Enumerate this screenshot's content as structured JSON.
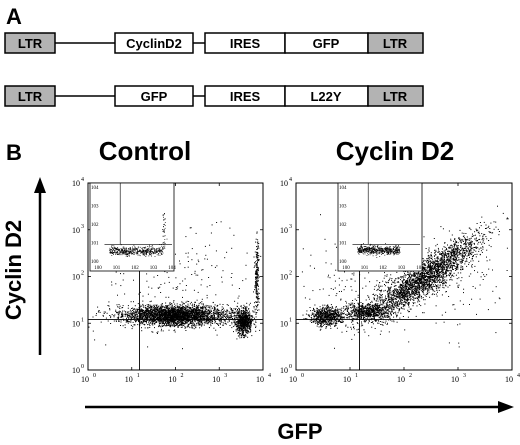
{
  "panel_a": {
    "letter": "A",
    "constructs": [
      {
        "name": "cyclind2-construct",
        "segments": [
          "LTR",
          "CyclinD2",
          "IRES",
          "GFP",
          "LTR"
        ]
      },
      {
        "name": "l22y-construct",
        "segments": [
          "LTR",
          "GFP",
          "IRES",
          "L22Y",
          "LTR"
        ]
      }
    ]
  },
  "panel_b": {
    "letter": "B",
    "y_axis_title": "Cyclin D2",
    "x_axis_title": "GFP"
  },
  "chart_data": [
    {
      "type": "scatter",
      "title": "Control",
      "xlabel": "GFP",
      "ylabel": "Cyclin D2",
      "xscale": "log",
      "yscale": "log",
      "xlim": [
        1,
        10000
      ],
      "ylim": [
        1,
        10000
      ],
      "xticks": [
        "10",
        "10",
        "10",
        "10",
        "10"
      ],
      "xtick_exponents": [
        "0",
        "1",
        "2",
        "3",
        "4"
      ],
      "yticks": [
        "10",
        "10",
        "10",
        "10",
        "10"
      ],
      "ytick_exponents": [
        "0",
        "1",
        "2",
        "3",
        "4"
      ],
      "quadrant_gate": {
        "x": 15,
        "y": 12
      },
      "populations": [
        {
          "x_log_center": 2.0,
          "y_log_center": 1.18,
          "x_log_spread": 1.2,
          "y_log_spread": 0.22,
          "weight": 0.72
        },
        {
          "x_log_center": 3.55,
          "y_log_center": 1.05,
          "x_log_spread": 0.2,
          "y_log_spread": 0.28,
          "weight": 0.18
        },
        {
          "x_log_center": 3.85,
          "y_log_center": 2.0,
          "x_log_spread": 0.05,
          "y_log_spread": 0.8,
          "weight": 0.05
        },
        {
          "x_log_center": 2.0,
          "y_log_center": 2.0,
          "x_log_spread": 2.0,
          "y_log_spread": 1.2,
          "weight": 0.05
        }
      ],
      "inset": {
        "note": "gated population preview"
      }
    },
    {
      "type": "scatter",
      "title": "Cyclin D2",
      "xlabel": "GFP",
      "ylabel": "Cyclin D2",
      "xscale": "log",
      "yscale": "log",
      "xlim": [
        1,
        10000
      ],
      "ylim": [
        1,
        10000
      ],
      "xticks": [
        "10",
        "10",
        "10",
        "10",
        "10"
      ],
      "xtick_exponents": [
        "0",
        "1",
        "2",
        "3",
        "4"
      ],
      "yticks": [
        "10",
        "10",
        "10",
        "10",
        "10"
      ],
      "ytick_exponents": [
        "0",
        "1",
        "2",
        "3",
        "4"
      ],
      "quadrant_gate": {
        "x": 15,
        "y": 12
      },
      "populations": [
        {
          "x_log_center": 0.55,
          "y_log_center": 1.15,
          "x_log_spread": 0.3,
          "y_log_spread": 0.2,
          "weight": 0.15
        },
        {
          "x_log_center": 1.3,
          "y_log_center": 1.25,
          "x_log_spread": 0.45,
          "y_log_spread": 0.18,
          "weight": 0.15
        },
        {
          "x_log_center": 2.4,
          "y_log_center": 2.0,
          "x_log_spread": 0.45,
          "y_log_spread": 0.35,
          "weight": 0.6
        },
        {
          "x_log_center": 2.0,
          "y_log_center": 2.0,
          "x_log_spread": 1.8,
          "y_log_spread": 1.0,
          "weight": 0.1
        }
      ],
      "inset": {
        "note": "gated population preview"
      }
    }
  ]
}
